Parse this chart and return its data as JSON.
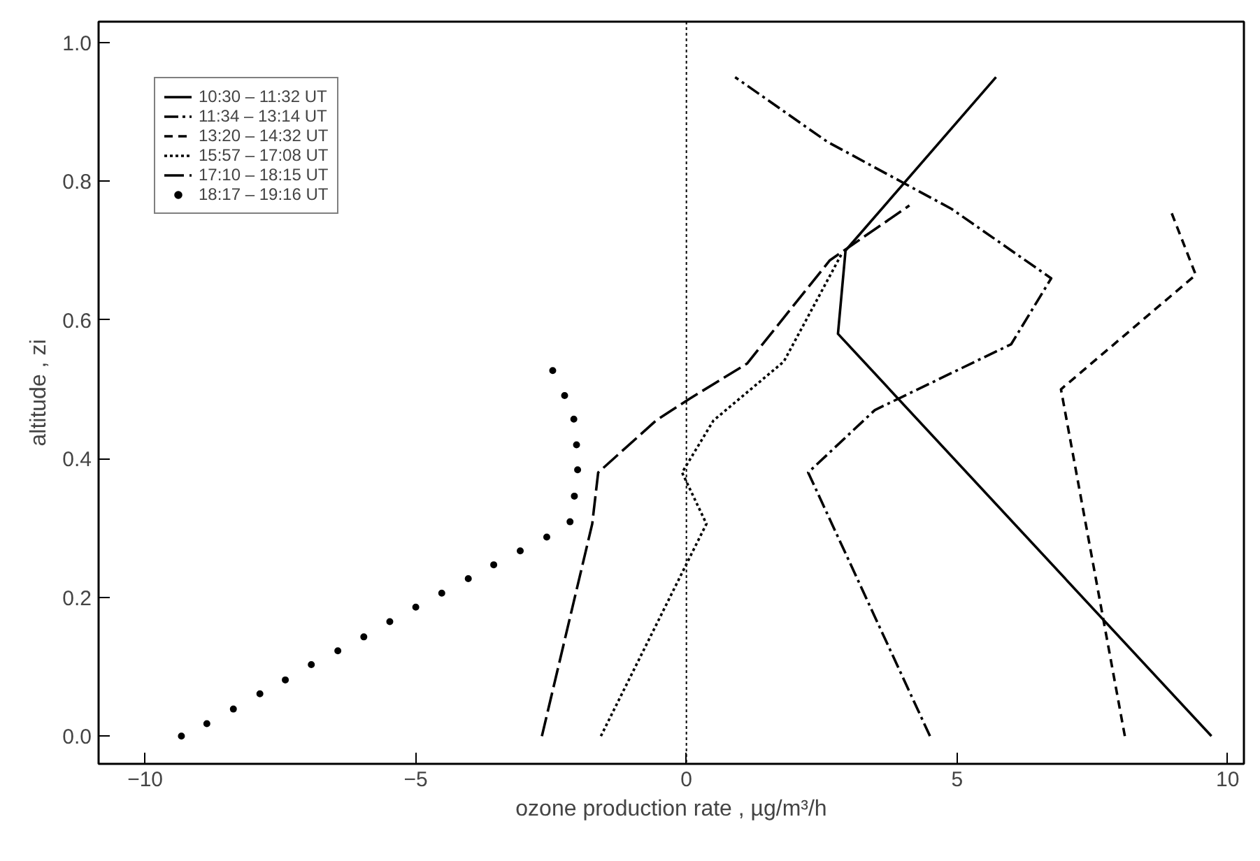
{
  "chart_data": {
    "type": "line",
    "xlabel": "ozone production rate , µg/m³/h",
    "ylabel": "altitude , zi",
    "xlim": [
      -10.86,
      10.3
    ],
    "ylim": [
      -0.04,
      1.03
    ],
    "xticks": [
      {
        "value": -10,
        "label": "−10"
      },
      {
        "value": -5,
        "label": "−5"
      },
      0,
      5,
      10
    ],
    "yticks": [
      {
        "value": 0,
        "label": "0.0"
      },
      {
        "value": 0.2,
        "label": "0.2"
      },
      {
        "value": 0.4,
        "label": "0.4"
      },
      {
        "value": 0.6,
        "label": "0.6"
      },
      {
        "value": 0.8,
        "label": "0.8"
      },
      {
        "value": 1,
        "label": "1.0"
      }
    ],
    "grid": false,
    "legend": "top left",
    "ref_lines": [
      {
        "axis": "x",
        "value": 0,
        "color": "#000000",
        "line_style": "dotted"
      }
    ],
    "series": [
      {
        "name": "10:30 – 11:32 UT",
        "color": "#000000",
        "line_style": "solid",
        "x": [
          9.7,
          2.8,
          2.94,
          5.72
        ],
        "values": [
          0.0,
          0.58,
          0.7,
          0.95
        ]
      },
      {
        "name": "11:34 – 13:14 UT",
        "color": "#000000",
        "line_style": "dashdot",
        "x": [
          4.5,
          2.25,
          3.48,
          6.0,
          6.74,
          4.9,
          2.6,
          0.9
        ],
        "values": [
          0.0,
          0.38,
          0.47,
          0.565,
          0.66,
          0.76,
          0.857,
          0.95
        ]
      },
      {
        "name": "13:20 – 14:32 UT",
        "color": "#000000",
        "line_style": "dashed",
        "x": [
          8.1,
          6.92,
          9.41,
          8.96
        ],
        "values": [
          0.0,
          0.5,
          0.665,
          0.755
        ]
      },
      {
        "name": "15:57 – 17:08 UT",
        "color": "#000000",
        "line_style": "dotted",
        "x": [
          -1.58,
          0.37,
          -0.08,
          0.5,
          1.8,
          2.86
        ],
        "values": [
          0.0,
          0.306,
          0.38,
          0.455,
          0.54,
          0.694
        ]
      },
      {
        "name": "17:10 – 18:15 UT",
        "color": "#000000",
        "line_style": "longdash",
        "x": [
          -2.67,
          -1.74,
          -1.63,
          -0.56,
          0.05,
          1.12,
          2.65,
          4.12
        ],
        "values": [
          0.0,
          0.306,
          0.38,
          0.455,
          0.486,
          0.537,
          0.686,
          0.765
        ]
      },
      {
        "name": "18:17 – 19:16 UT",
        "color": "#000000",
        "type": "scatter",
        "marker": "circle",
        "x": [
          -9.33,
          -8.86,
          -8.37,
          -7.88,
          -7.41,
          -6.93,
          -6.44,
          -5.96,
          -5.48,
          -5.0,
          -4.52,
          -4.03,
          -3.56,
          -3.07,
          -2.58,
          -2.15,
          -2.07,
          -2.01,
          -2.03,
          -2.08,
          -2.25,
          -2.47
        ],
        "values": [
          0.0,
          0.018,
          0.039,
          0.061,
          0.081,
          0.103,
          0.123,
          0.143,
          0.165,
          0.186,
          0.206,
          0.227,
          0.247,
          0.267,
          0.287,
          0.309,
          0.346,
          0.384,
          0.42,
          0.457,
          0.491,
          0.527
        ]
      }
    ]
  }
}
